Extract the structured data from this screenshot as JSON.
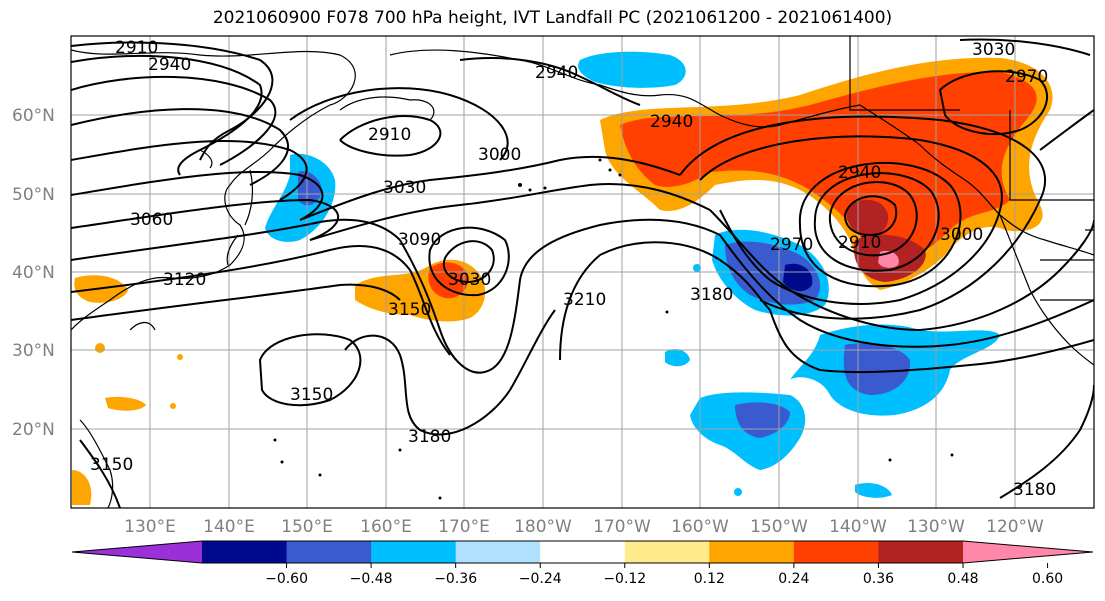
{
  "title": "2021060900 F078 700 hPa height, IVT Landfall PC (2021061200 - 2021061400)",
  "lat_labels": [
    "60°N",
    "50°N",
    "40°N",
    "30°N",
    "20°N"
  ],
  "lon_labels": [
    "130°E",
    "140°E",
    "150°E",
    "160°E",
    "170°E",
    "180°W",
    "170°W",
    "160°W",
    "150°W",
    "140°W",
    "130°W",
    "120°W"
  ],
  "contour_labels": [
    "2910",
    "2940",
    "2940",
    "2910",
    "3000",
    "3030",
    "3060",
    "3120",
    "3090",
    "3030",
    "3150",
    "3210",
    "3180",
    "2940",
    "2910",
    "2970",
    "3000",
    "3030",
    "2970",
    "2940",
    "3150",
    "3180",
    "3180",
    "3150"
  ],
  "colorbar": {
    "colors": [
      "#9b30d9",
      "#000a8c",
      "#3a5bd0",
      "#00bfff",
      "#b0e2ff",
      "#ffffff",
      "#ffeb8a",
      "#ffa500",
      "#ff4000",
      "#b22222",
      "#ff88aa"
    ],
    "tick_labels": [
      "−0.60",
      "−0.48",
      "−0.36",
      "−0.24",
      "−0.12",
      "0.12",
      "0.24",
      "0.36",
      "0.48",
      "0.60"
    ]
  }
}
